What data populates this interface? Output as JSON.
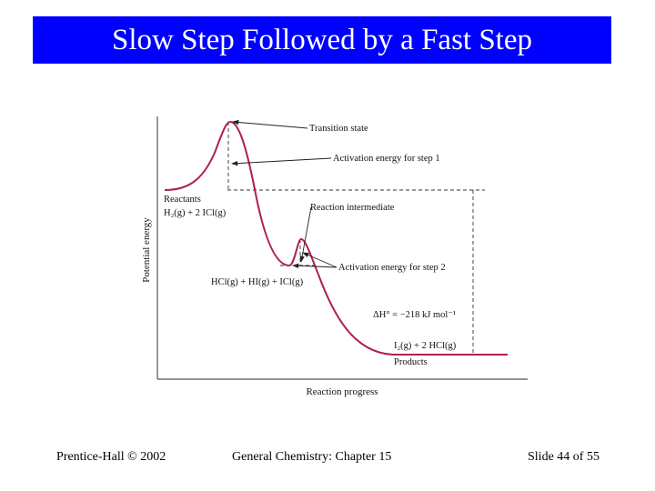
{
  "slide": {
    "title": "Slow Step Followed by a Fast Step",
    "footer_left": "Prentice-Hall © 2002",
    "footer_center": "General Chemistry: Chapter 15",
    "footer_right": "Slide 44 of 55"
  },
  "diagram": {
    "y_axis_label": "Potential energy",
    "x_axis_label": "Reaction progress",
    "labels": {
      "transition_state": "Transition state",
      "activation_energy_step1": "Activation energy for step 1",
      "reactants": "Reactants",
      "reactants_formula": "H₂(g) + 2 ICl(g)",
      "reaction_intermediate": "Reaction intermediate",
      "activation_energy_step2": "Activation energy for step 2",
      "intermediate_formula": "HCl(g) + HI(g) + ICl(g)",
      "delta_h": "ΔH° = −218 kJ mol⁻¹",
      "products_formula": "I₂(g) + 2 HCl(g)",
      "products": "Products"
    },
    "colors": {
      "curve": "#b0204a",
      "axes": "#555555",
      "guides": "#333333",
      "title_bar": "#0000ff"
    }
  }
}
